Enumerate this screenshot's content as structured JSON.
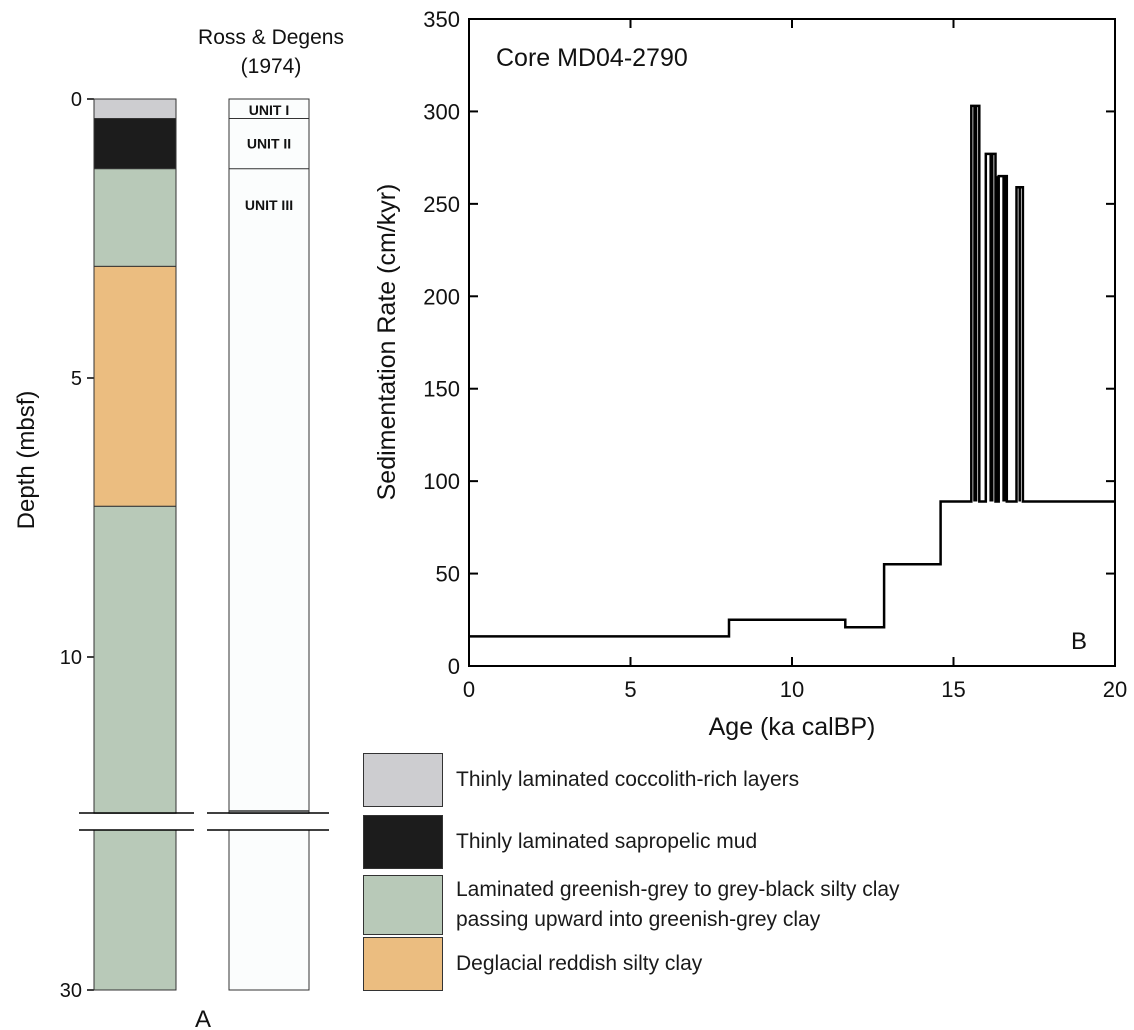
{
  "chart_data": [
    {
      "panel": "A",
      "type": "stratigraphic-column",
      "ylabel": "Depth (mbsf)",
      "y_ticks": [
        0,
        5,
        10,
        30
      ],
      "axis_break": {
        "from": 12.8,
        "to": 29.7
      },
      "panel_label": "A",
      "lithology_column": [
        {
          "top": 0,
          "bottom": 0.35,
          "facies": "coccolith"
        },
        {
          "top": 0.35,
          "bottom": 1.25,
          "facies": "sapropel"
        },
        {
          "top": 1.25,
          "bottom": 3.0,
          "facies": "greenish_grey"
        },
        {
          "top": 3.0,
          "bottom": 7.3,
          "facies": "reddish"
        },
        {
          "top": 7.3,
          "bottom": 30,
          "facies": "greenish_grey"
        }
      ],
      "unit_column": {
        "title": "Ross & Degens\n(1974)",
        "units": [
          {
            "top": 0,
            "bottom": 0.35,
            "label": "UNIT I"
          },
          {
            "top": 0.35,
            "bottom": 1.25,
            "label": "UNIT II"
          },
          {
            "top": 1.25,
            "bottom": 30,
            "label": "UNIT III"
          }
        ]
      }
    },
    {
      "panel": "B",
      "type": "line",
      "title": "Core MD04-2790",
      "xlabel": "Age (ka calBP)",
      "ylabel": "Sedimentation Rate (cm/kyr)",
      "xlim": [
        0,
        20
      ],
      "ylim": [
        0,
        350
      ],
      "x_ticks": [
        0,
        5,
        10,
        15,
        20
      ],
      "y_ticks": [
        0,
        50,
        100,
        150,
        200,
        250,
        300,
        350
      ],
      "panel_label": "B",
      "step_x": [
        0,
        8.05,
        8.05,
        11.65,
        11.65,
        12.85,
        12.85,
        14.6,
        14.6,
        15.55,
        15.55,
        15.8,
        15.8,
        16.0,
        16.0,
        16.3,
        16.3,
        16.4,
        16.4,
        16.65,
        16.65,
        16.95,
        16.95,
        17.15,
        17.15,
        20
      ],
      "step_y": [
        16,
        16,
        25,
        25,
        21,
        21,
        55,
        55,
        89,
        89,
        303,
        303,
        89,
        89,
        277,
        277,
        89,
        89,
        265,
        265,
        89,
        89,
        259,
        259,
        89,
        89
      ],
      "extra_segments": [
        {
          "x": [
            15.65,
            15.65
          ],
          "y": [
            89,
            303
          ]
        },
        {
          "x": [
            15.7,
            15.7
          ],
          "y": [
            89,
            303
          ]
        },
        {
          "x": [
            16.15,
            16.15
          ],
          "y": [
            89,
            277
          ]
        },
        {
          "x": [
            16.2,
            16.2
          ],
          "y": [
            89,
            277
          ]
        },
        {
          "x": [
            16.35,
            16.35
          ],
          "y": [
            89,
            265
          ]
        },
        {
          "x": [
            16.55,
            16.55
          ],
          "y": [
            89,
            265
          ]
        },
        {
          "x": [
            16.6,
            16.6
          ],
          "y": [
            89,
            265
          ]
        },
        {
          "x": [
            17.05,
            17.05
          ],
          "y": [
            89,
            259
          ]
        }
      ]
    }
  ],
  "legend": [
    {
      "facies": "coccolith",
      "color": "#cdcdd0",
      "label": "Thinly laminated coccolith-rich layers"
    },
    {
      "facies": "sapropel",
      "color": "#1c1c1c",
      "label": "Thinly laminated sapropelic mud"
    },
    {
      "facies": "greenish_grey",
      "color": "#b8c9b8",
      "label": "Laminated greenish-grey to grey-black silty clay\npassing upward into greenish-grey clay"
    },
    {
      "facies": "reddish",
      "color": "#ebbd80",
      "label": "Deglacial reddish silty clay"
    }
  ],
  "colors": {
    "unit_fill": "#fbfdfd",
    "line": "#000000",
    "axis": "#000000"
  }
}
